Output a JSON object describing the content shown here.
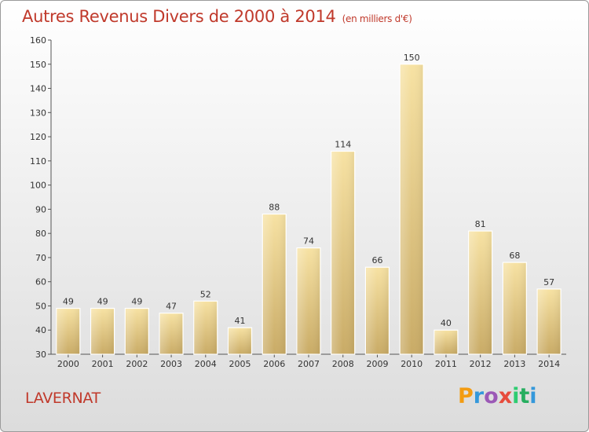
{
  "title": "Autres Revenus Divers de 2000 à 2014",
  "title_unit": "(en milliers d'€)",
  "location": "LAVERNAT",
  "logo": {
    "letters": [
      "P",
      "r",
      "o",
      "x",
      "i",
      "t",
      "i"
    ],
    "colors": [
      "#f39c12",
      "#3498db",
      "#9b59b6",
      "#e74c3c",
      "#2ecc71",
      "#27ae60",
      "#3498db"
    ]
  },
  "chart_data": {
    "type": "bar",
    "categories": [
      "2000",
      "2001",
      "2002",
      "2003",
      "2004",
      "2005",
      "2006",
      "2007",
      "2008",
      "2009",
      "2010",
      "2011",
      "2012",
      "2013",
      "2014"
    ],
    "values": [
      49,
      49,
      49,
      47,
      52,
      41,
      88,
      74,
      114,
      66,
      150,
      40,
      81,
      68,
      57
    ],
    "ylim": [
      30,
      160
    ],
    "yticks": [
      30,
      40,
      50,
      60,
      70,
      80,
      90,
      100,
      110,
      120,
      130,
      140,
      150,
      160
    ],
    "grid": false,
    "bar_color": "#e8c98a"
  }
}
